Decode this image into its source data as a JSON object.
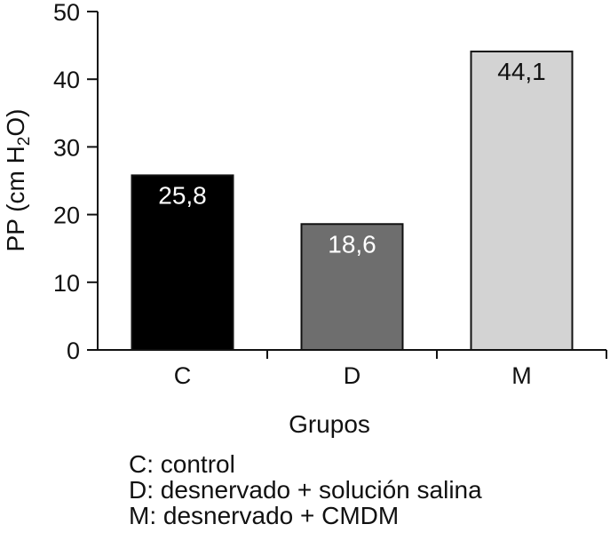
{
  "chart_data": {
    "type": "bar",
    "categories": [
      "C",
      "D",
      "M"
    ],
    "values": [
      25.8,
      18.6,
      44.1
    ],
    "value_labels": [
      "25,8",
      "18,6",
      "44,1"
    ],
    "bar_colors": [
      "#000000",
      "#6e6e6e",
      "#d3d3d3"
    ],
    "label_colors": [
      "#ffffff",
      "#ffffff",
      "#111111"
    ],
    "xlabel": "Grupos",
    "ylabel": "PP (cm H2O)",
    "ylabel_parts": {
      "pre": "PP (cm H",
      "sub": "2",
      "post": "O)"
    },
    "ylim": [
      0,
      50
    ],
    "yticks": [
      0,
      10,
      20,
      30,
      40,
      50
    ],
    "grid": false
  },
  "legend": {
    "lines": [
      "C: control",
      "D: desnervado + solución salina",
      "M: desnervado + CMDM"
    ]
  }
}
